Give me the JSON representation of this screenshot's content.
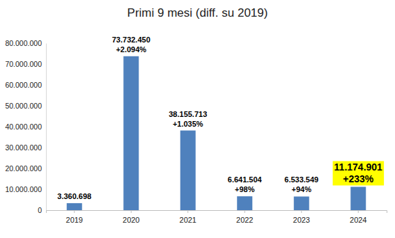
{
  "chart_data": {
    "type": "bar",
    "title": "Primi 9 mesi (diff. su 2019)",
    "categories": [
      "2019",
      "2020",
      "2021",
      "2022",
      "2023",
      "2024"
    ],
    "values": [
      3360698,
      73732450,
      38155713,
      6641504,
      6533549,
      11174901
    ],
    "value_labels": [
      "3.360.698",
      "73.732.450",
      "38.155.713",
      "6.641.504",
      "6.533.549",
      "11.174.901"
    ],
    "change_labels": [
      null,
      "+2.094%",
      "+1.035%",
      "+98%",
      "+94%",
      "+233%"
    ],
    "color": "#4f81bd",
    "ylim": [
      0,
      80000000
    ],
    "yticks": [
      0,
      {
        "value": 10000000,
        "label": "10.000.000"
      },
      {
        "value": 20000000,
        "label": "20.000.000"
      },
      {
        "value": 30000000,
        "label": "30.000.000"
      },
      {
        "value": 40000000,
        "label": "40.000.000"
      },
      {
        "value": 50000000,
        "label": "50.000.000"
      },
      {
        "value": 60000000,
        "label": "60.000.000"
      },
      {
        "value": 70000000,
        "label": "70.000.000"
      },
      {
        "value": 80000000,
        "label": "80.000.000"
      }
    ],
    "grid": false,
    "data_labels": true
  }
}
